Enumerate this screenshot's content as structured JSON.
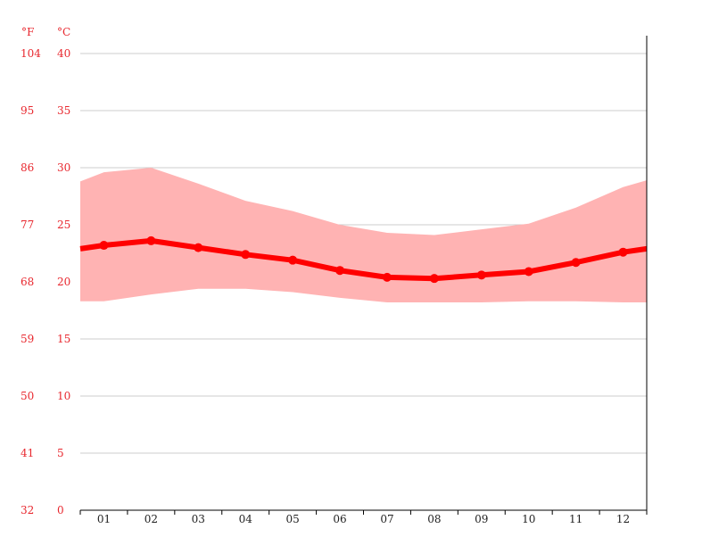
{
  "chart_data": {
    "type": "area",
    "units": {
      "fahrenheit": "°F",
      "celsius": "°C"
    },
    "categories": [
      "01",
      "02",
      "03",
      "04",
      "05",
      "06",
      "07",
      "08",
      "09",
      "10",
      "11",
      "12"
    ],
    "y_ticks_c": [
      "0",
      "5",
      "10",
      "15",
      "20",
      "25",
      "30",
      "35",
      "40"
    ],
    "y_ticks_f": [
      "32",
      "41",
      "50",
      "59",
      "68",
      "77",
      "86",
      "95",
      "104"
    ],
    "ylim": [
      0,
      40
    ],
    "grid": true,
    "series": [
      {
        "values": [
          23.2,
          23.6,
          23.0,
          22.4,
          21.9,
          21.0,
          20.4,
          20.3,
          20.6,
          20.9,
          21.7,
          22.6
        ]
      }
    ],
    "range": {
      "max": [
        29.6,
        30.0,
        28.6,
        27.1,
        26.2,
        25.0,
        24.3,
        24.1,
        24.6,
        25.1,
        26.5,
        28.3
      ],
      "min": [
        18.3,
        18.9,
        19.4,
        19.4,
        19.1,
        18.6,
        18.2,
        18.2,
        18.2,
        18.3,
        18.3,
        18.2
      ]
    },
    "colors": {
      "line": "#ff0000",
      "band": "#ffb3b3",
      "labels": "#e8272e",
      "grid": "#cccccc"
    }
  }
}
